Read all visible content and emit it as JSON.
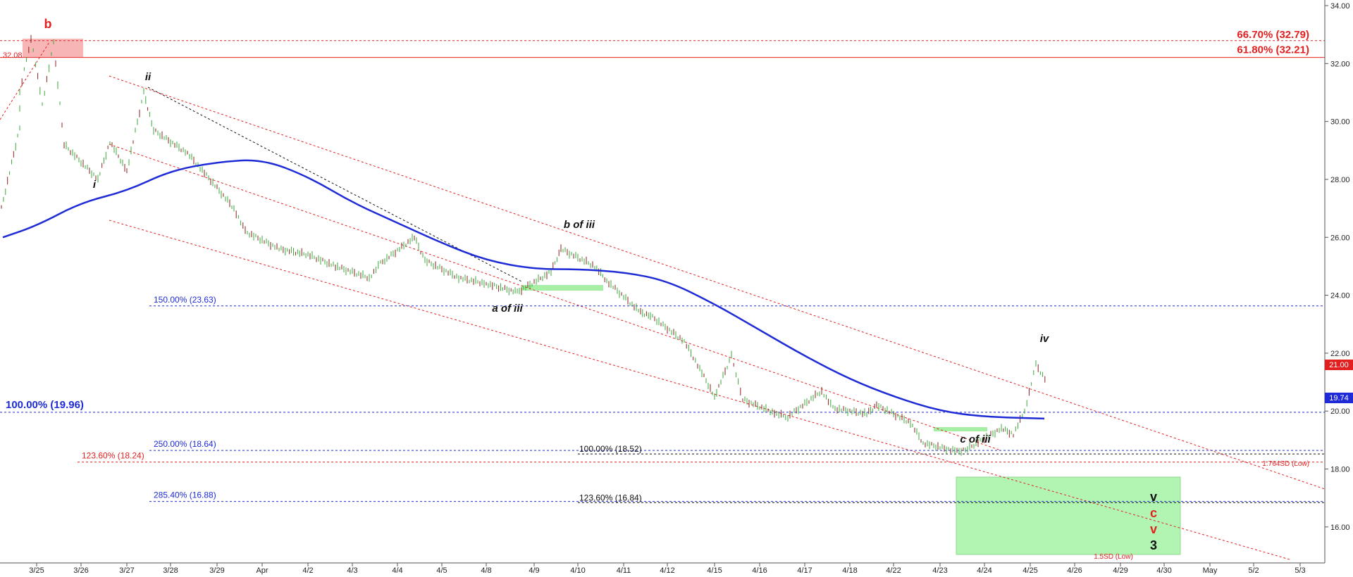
{
  "chart_data": {
    "type": "line",
    "title": "",
    "ylim": [
      15,
      34
    ],
    "y_ticks": [
      "16.00",
      "18.00",
      "20.00",
      "22.00",
      "24.00",
      "26.00",
      "28.00",
      "30.00",
      "32.00",
      "34.00"
    ],
    "x_ticks": [
      "3/25",
      "3/26",
      "3/27",
      "3/28",
      "3/29",
      "Apr",
      "4/2",
      "4/3",
      "4/4",
      "4/5",
      "4/8",
      "4/9",
      "4/10",
      "4/11",
      "4/12",
      "4/15",
      "4/16",
      "4/17",
      "4/18",
      "4/22",
      "4/23",
      "4/24",
      "4/25",
      "4/26",
      "4/29",
      "4/30",
      "May",
      "5/2",
      "5/3"
    ],
    "price_path": [
      [
        "3/24",
        27.0
      ],
      [
        "3/24",
        29.8
      ],
      [
        "3/25",
        31.0
      ],
      [
        "3/25",
        32.9
      ],
      [
        "3/25",
        30.6
      ],
      [
        "3/25",
        32.7
      ],
      [
        "3/26",
        29.2
      ],
      [
        "3/26",
        28.0
      ],
      [
        "3/27",
        29.3
      ],
      [
        "3/27",
        28.3
      ],
      [
        "3/27",
        31.0
      ],
      [
        "3/28",
        29.7
      ],
      [
        "3/28",
        28.9
      ],
      [
        "3/29",
        28.4
      ],
      [
        "3/29",
        27.0
      ],
      [
        "Apr",
        26.2
      ],
      [
        "Apr",
        25.6
      ],
      [
        "4/2",
        25.4
      ],
      [
        "4/3",
        25.0
      ],
      [
        "4/3",
        24.6
      ],
      [
        "4/4",
        25.1
      ],
      [
        "4/4",
        26.0
      ],
      [
        "4/5",
        25.2
      ],
      [
        "4/5",
        24.6
      ],
      [
        "4/8",
        24.4
      ],
      [
        "4/9",
        24.1
      ],
      [
        "4/9",
        24.8
      ],
      [
        "4/10",
        25.6
      ],
      [
        "4/10",
        25.0
      ],
      [
        "4/11",
        24.5
      ],
      [
        "4/11",
        23.4
      ],
      [
        "4/12",
        23.3
      ],
      [
        "4/12",
        22.4
      ],
      [
        "4/15",
        21.6
      ],
      [
        "4/15",
        20.5
      ],
      [
        "4/15",
        21.9
      ],
      [
        "4/16",
        20.4
      ],
      [
        "4/16",
        19.9
      ],
      [
        "4/17",
        19.8
      ],
      [
        "4/17",
        20.7
      ],
      [
        "4/18",
        20.1
      ],
      [
        "4/18",
        19.9
      ],
      [
        "4/22",
        20.2
      ],
      [
        "4/22",
        19.6
      ],
      [
        "4/23",
        18.9
      ],
      [
        "4/23",
        18.6
      ],
      [
        "4/24",
        18.7
      ],
      [
        "4/24",
        19.4
      ],
      [
        "4/25",
        19.2
      ],
      [
        "4/25",
        20.0
      ],
      [
        "4/25",
        21.6
      ],
      [
        "4/25",
        21.0
      ]
    ],
    "series": [
      {
        "name": "",
        "color": "#1f2bd6",
        "x": [
          "3/24",
          "3/25",
          "3/26",
          "3/27",
          "3/28",
          "3/29",
          "Apr",
          "4/2",
          "4/3",
          "4/4",
          "4/5",
          "4/8",
          "4/9",
          "4/10",
          "4/11",
          "4/12",
          "4/15",
          "4/16",
          "4/17",
          "4/18",
          "4/22",
          "4/23",
          "4/24",
          "4/25"
        ],
        "values": [
          26.0,
          26.4,
          27.2,
          27.6,
          28.3,
          28.6,
          28.7,
          28.1,
          27.2,
          26.5,
          25.8,
          25.2,
          24.9,
          24.9,
          24.8,
          24.5,
          23.7,
          22.8,
          21.9,
          21.1,
          20.5,
          20.0,
          19.8,
          19.74
        ]
      }
    ],
    "annotations": {
      "price_badge": "21.00",
      "ma_badge": "19.74",
      "side_label": "32.08",
      "levels": [
        {
          "text": "66.70% (32.79)",
          "value": 32.79,
          "color": "#e22020"
        },
        {
          "text": "61.80% (32.21)",
          "value": 32.21,
          "color": "#e22020"
        },
        {
          "text": "150.00% (23.63)",
          "value": 23.63,
          "color": "#1f2bd6"
        },
        {
          "text": "100.00% (19.96)",
          "value": 19.96,
          "color": "#1f2bd6"
        },
        {
          "text": "250.00% (18.64)",
          "value": 18.64,
          "color": "#1f2bd6"
        },
        {
          "text": "100.00% (18.52)",
          "value": 18.52,
          "color": "#111111"
        },
        {
          "text": "123.60% (18.24)",
          "value": 18.24,
          "color": "#e22020"
        },
        {
          "text": "285.40% (16.88)",
          "value": 16.88,
          "color": "#1f2bd6"
        },
        {
          "text": "123.60% (16.84)",
          "value": 16.84,
          "color": "#111111"
        }
      ],
      "waves": [
        "b",
        "i",
        "ii",
        "a of iii",
        "b of iii",
        "c of iii",
        "iv"
      ],
      "target_stack": [
        "v",
        "c",
        "v",
        "3"
      ],
      "sd_labels": [
        "1.764SD (Low)",
        "1.5SD (Low)"
      ]
    }
  }
}
